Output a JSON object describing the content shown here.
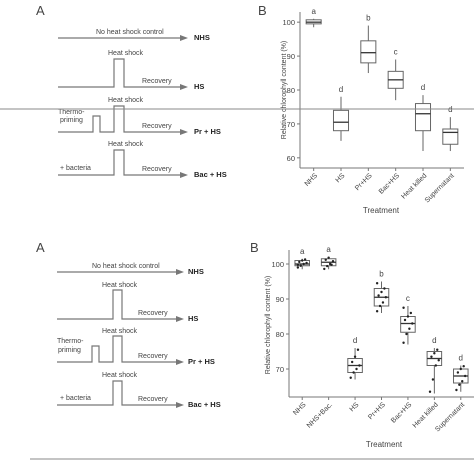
{
  "figure_top": {
    "panel_a_label": "A",
    "panel_b_label": "B",
    "schematic": {
      "control_text": "No heat shock control",
      "heat_shock": "Heat shock",
      "recovery": "Recovery",
      "thermo_line1": "Thermo-",
      "thermo_line2": "priming",
      "bacteria": "+ bacteria",
      "rows": [
        "NHS",
        "HS",
        "Pr + HS",
        "Bac + HS"
      ]
    },
    "chart_data": {
      "type": "box",
      "ylabel": "Relative chlorophyll content (%)",
      "xlabel": "Treatment",
      "ylim": [
        57,
        103
      ],
      "yticks": [
        60,
        70,
        80,
        90,
        100
      ],
      "categories": [
        "NHS",
        "HS",
        "Pr+HS",
        "Bac+HS",
        "Heat killed",
        "Supernatant"
      ],
      "letters": [
        "a",
        "d",
        "b",
        "c",
        "d",
        "d"
      ],
      "boxes": [
        {
          "min": 98.5,
          "q1": 99.5,
          "median": 100,
          "q3": 100.7,
          "max": 101
        },
        {
          "min": 65,
          "q1": 68,
          "median": 70.5,
          "q3": 74,
          "max": 78
        },
        {
          "min": 85,
          "q1": 88,
          "median": 91,
          "q3": 94.5,
          "max": 99
        },
        {
          "min": 77,
          "q1": 80.5,
          "median": 83,
          "q3": 85.5,
          "max": 89
        },
        {
          "min": 62,
          "q1": 68,
          "median": 73,
          "q3": 76,
          "max": 78.5
        },
        {
          "min": 62,
          "q1": 64,
          "median": 67.5,
          "q3": 68.5,
          "max": 72
        }
      ]
    }
  },
  "figure_bottom": {
    "panel_a_label": "A",
    "panel_b_label": "B",
    "schematic": {
      "control_text": "No heat shock control",
      "heat_shock": "Heat shock",
      "recovery": "Recovery",
      "thermo_line1": "Thermo-",
      "thermo_line2": "priming",
      "bacteria": "+ bacteria",
      "rows": [
        "NHS",
        "HS",
        "Pr + HS",
        "Bac + HS"
      ]
    },
    "chart_data": {
      "type": "box",
      "ylabel": "Relative chlorophyll content (%)",
      "xlabel": "Treatment",
      "ylim": [
        62,
        104
      ],
      "yticks": [
        70,
        80,
        90,
        100
      ],
      "categories": [
        "NHS",
        "NHS+Bac.",
        "HS",
        "Pr+HS",
        "Bac+HS",
        "Heat killed",
        "Supernatant"
      ],
      "letters": [
        "a",
        "a",
        "d",
        "b",
        "c",
        "d",
        "d"
      ],
      "boxes": [
        {
          "min": 98.5,
          "q1": 99.5,
          "median": 100,
          "q3": 101,
          "max": 101.5
        },
        {
          "min": 98.5,
          "q1": 99.5,
          "median": 100.5,
          "q3": 101.5,
          "max": 102
        },
        {
          "min": 67,
          "q1": 69,
          "median": 71,
          "q3": 73,
          "max": 76
        },
        {
          "min": 86,
          "q1": 88,
          "median": 90.5,
          "q3": 93,
          "max": 95
        },
        {
          "min": 77,
          "q1": 80.5,
          "median": 83,
          "q3": 85,
          "max": 88
        },
        {
          "min": 63,
          "q1": 71,
          "median": 73,
          "q3": 75,
          "max": 76
        },
        {
          "min": 63.5,
          "q1": 66,
          "median": 68,
          "q3": 70,
          "max": 71
        }
      ],
      "points": [
        [
          99,
          99.5,
          100,
          100.3,
          100.6,
          101,
          101.3,
          99.8
        ],
        [
          98.6,
          99.4,
          100,
          100.8,
          101.2,
          101.8,
          99.8
        ],
        [
          67.5,
          69,
          70,
          71,
          72,
          73.5,
          75.5
        ],
        [
          86.5,
          88,
          89,
          90.5,
          91,
          92,
          93,
          94.5
        ],
        [
          77.5,
          80,
          81.5,
          83,
          84,
          85,
          86,
          87.5
        ],
        [
          63.5,
          67,
          71,
          72.5,
          73.5,
          74.5,
          75.5
        ],
        [
          64,
          65.5,
          66.5,
          68,
          69,
          70,
          70.8
        ]
      ]
    }
  }
}
